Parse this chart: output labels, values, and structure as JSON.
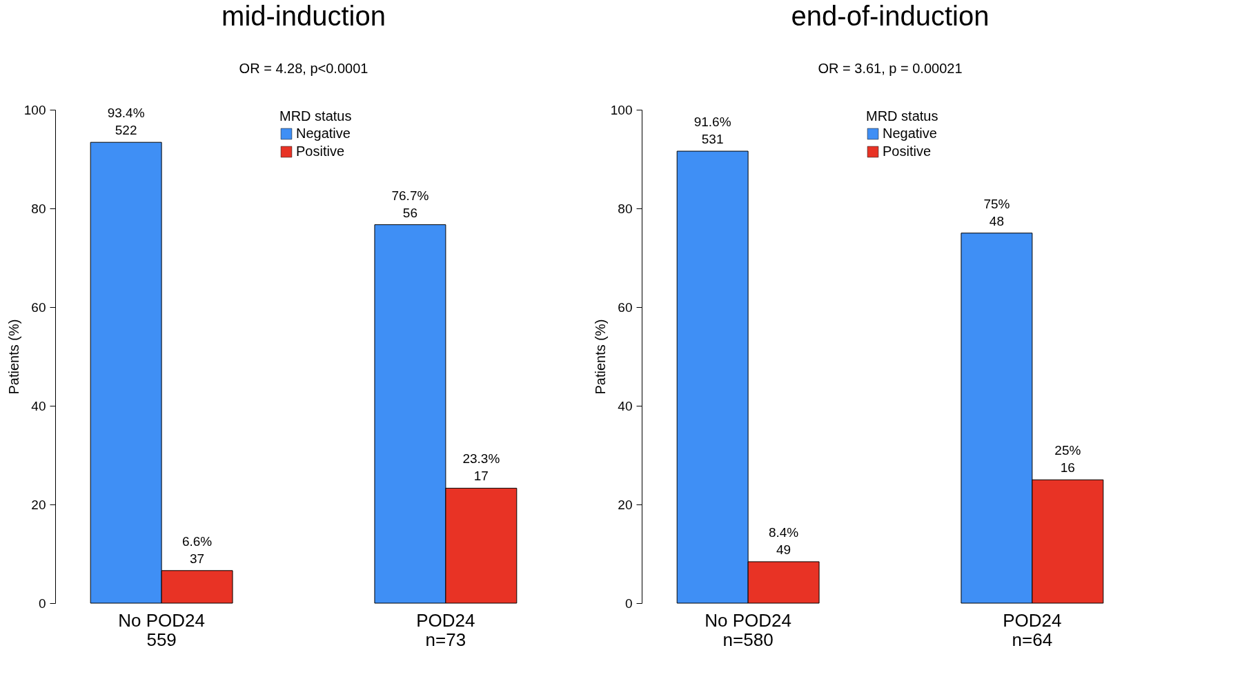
{
  "chart_data": [
    {
      "type": "bar",
      "title": "mid-induction",
      "annotations": [
        "OR = 4.28, p<0.0001"
      ],
      "ylabel": "Patients (%)",
      "legend_title": "MRD status",
      "legend": "top",
      "categories": [
        "No POD24\n559",
        "POD24\nn=73"
      ],
      "series": [
        {
          "name": "Negative",
          "color": "#3f8ff5",
          "values": [
            93.4,
            76.7
          ],
          "value_labels": [
            "93.4%\n522",
            "76.7%\n56"
          ]
        },
        {
          "name": "Positive",
          "color": "#e83325",
          "values": [
            6.6,
            23.3
          ],
          "value_labels": [
            "6.6%\n37",
            "23.3%\n17"
          ]
        }
      ],
      "ylim": [
        0,
        100
      ],
      "yticks": [
        0,
        20,
        40,
        60,
        80,
        100
      ],
      "grid": false
    },
    {
      "type": "bar",
      "title": "end-of-induction",
      "annotations": [
        "OR = 3.61, p = 0.00021"
      ],
      "ylabel": "Patients (%)",
      "legend_title": "MRD status",
      "legend": "top",
      "categories": [
        "No POD24\nn=580",
        "POD24\nn=64"
      ],
      "series": [
        {
          "name": "Negative",
          "color": "#3f8ff5",
          "values": [
            91.6,
            75
          ],
          "value_labels": [
            "91.6%\n531",
            "75%\n48"
          ]
        },
        {
          "name": "Positive",
          "color": "#e83325",
          "values": [
            8.4,
            25
          ],
          "value_labels": [
            "8.4%\n49",
            "25%\n16"
          ]
        }
      ],
      "ylim": [
        0,
        100
      ],
      "yticks": [
        0,
        20,
        40,
        60,
        80,
        100
      ],
      "grid": false
    }
  ]
}
